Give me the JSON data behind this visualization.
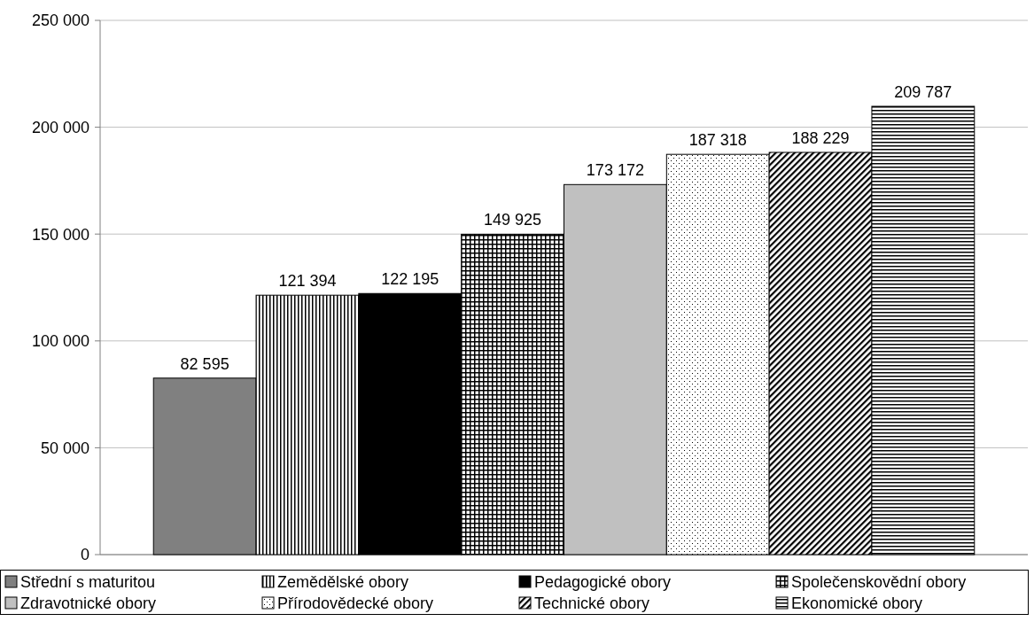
{
  "chart_data": {
    "type": "bar",
    "categories": [
      null
    ],
    "series": [
      {
        "name": "Střední s maturitou",
        "color": "#808080",
        "values": [
          82595
        ],
        "value_labels": [
          "82 595"
        ]
      },
      {
        "name": "Zemědělské obory",
        "color": "#000000",
        "values": [
          121394
        ],
        "value_labels": [
          "121 394"
        ]
      },
      {
        "name": "Pedagogické obory",
        "color": "#000000",
        "values": [
          122195
        ],
        "value_labels": [
          "122 195"
        ]
      },
      {
        "name": "Společenskovědní obory",
        "color": "#000000",
        "values": [
          149925
        ],
        "value_labels": [
          "149 925"
        ]
      },
      {
        "name": "Zdravotnické obory",
        "color": "#c0c0c0",
        "values": [
          173172
        ],
        "value_labels": [
          "173 172"
        ]
      },
      {
        "name": "Přírodovědecké obory",
        "color": "#000000",
        "values": [
          187318
        ],
        "value_labels": [
          "187 318"
        ]
      },
      {
        "name": "Technické obory",
        "color": "#000000",
        "values": [
          188229
        ],
        "value_labels": [
          "188 229"
        ]
      },
      {
        "name": "Ekonomické obory",
        "color": "#000000",
        "values": [
          209787
        ],
        "value_labels": [
          "209 787"
        ]
      }
    ],
    "ylim": [
      0,
      250000
    ],
    "yticks": [
      0,
      {
        "value": 50000,
        "label": "50 000"
      },
      {
        "value": 100000,
        "label": "100 000"
      },
      {
        "value": 150000,
        "label": "150 000"
      },
      {
        "value": 200000,
        "label": "200 000"
      },
      {
        "value": 250000,
        "label": "250 000"
      }
    ],
    "grid": "y",
    "legend": "bottom"
  }
}
